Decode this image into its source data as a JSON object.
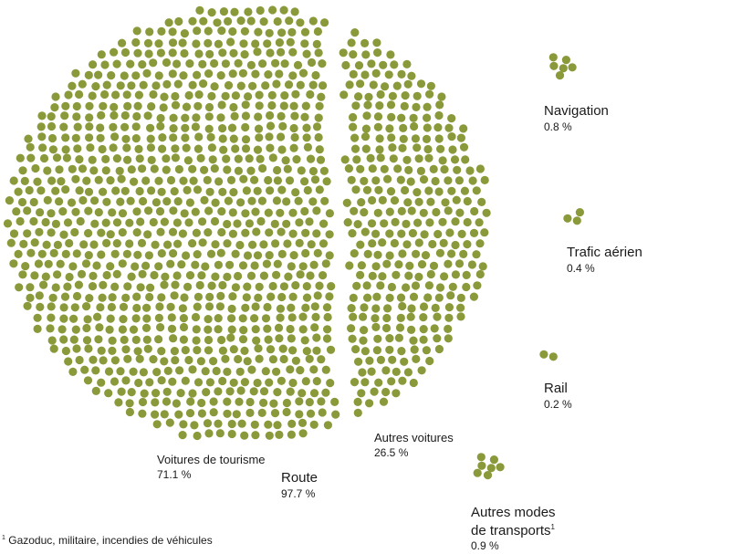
{
  "chart_data": {
    "type": "dot-proportion",
    "dot_color": "#8A9A3B",
    "groups": [
      {
        "name": "Voitures de tourisme",
        "value": 71.1,
        "unit": "%"
      },
      {
        "name": "Autres voitures",
        "value": 26.5,
        "unit": "%"
      },
      {
        "name": "Navigation",
        "value": 0.8,
        "unit": "%"
      },
      {
        "name": "Trafic aérien",
        "value": 0.4,
        "unit": "%"
      },
      {
        "name": "Rail",
        "value": 0.2,
        "unit": "%"
      },
      {
        "name": "Autres modes de transports",
        "value": 0.9,
        "unit": "%"
      }
    ],
    "totals": [
      {
        "name": "Route",
        "value": 97.7,
        "unit": "%"
      }
    ]
  },
  "labels": {
    "tourisme": {
      "name": "Voitures de tourisme",
      "pct": "71.1 %"
    },
    "autres_voitures": {
      "name": "Autres voitures",
      "pct": "26.5 %"
    },
    "route": {
      "name": "Route",
      "pct": "97.7 %"
    },
    "navigation": {
      "name": "Navigation",
      "pct": "0.8 %"
    },
    "aerien": {
      "name": "Trafic aérien",
      "pct": "0.4 %"
    },
    "rail": {
      "name": "Rail",
      "pct": "0.2 %"
    },
    "autres_modes": {
      "line1": "Autres modes",
      "line2": "de transports",
      "sup": "1",
      "pct": "0.9 %"
    }
  },
  "footnote": {
    "mark": "1",
    "text": "Gazoduc, militaire, incendies de véhicules"
  }
}
